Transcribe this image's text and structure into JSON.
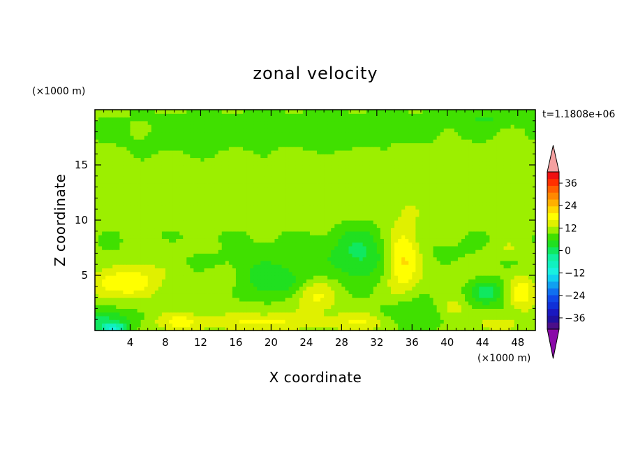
{
  "chart_data": {
    "type": "heatmap",
    "title": "zonal velocity",
    "xlabel": "X coordinate",
    "ylabel": "Z coordinate",
    "x_unit": "(×1000 m)",
    "y_unit": "(×1000 m)",
    "time_label": "t=1.1808e+06",
    "xlim": [
      0,
      50
    ],
    "ylim": [
      0,
      20
    ],
    "x_ticks": [
      4,
      8,
      12,
      16,
      20,
      24,
      28,
      32,
      36,
      40,
      44,
      48
    ],
    "y_ticks": [
      5,
      10,
      15
    ],
    "colorbar": {
      "levels": [
        -42,
        -39,
        -36,
        -33,
        -30,
        -27,
        -24,
        -21,
        -18,
        -15,
        -12,
        -9,
        -6,
        -3,
        0,
        3,
        6,
        9,
        12,
        15,
        18,
        21,
        24,
        27,
        30,
        33,
        36,
        39,
        42
      ],
      "colors": [
        "#4b0e8a",
        "#2010a0",
        "#1a18c0",
        "#1030d8",
        "#1048e8",
        "#1070f0",
        "#10a0f0",
        "#10d0f0",
        "#18f0e0",
        "#10f0c0",
        "#10f0a0",
        "#10e860",
        "#20e020",
        "#40e000",
        "#9cef00",
        "#e0f000",
        "#ffff00",
        "#ffd800",
        "#ffb000",
        "#ff8800",
        "#ff6000",
        "#ff3000",
        "#f01010"
      ],
      "under_color": "#8a0aa8",
      "over_color": "#f5a0a0",
      "tick_labels": [
        "36",
        "24",
        "12",
        "0",
        "−12",
        "−24",
        "−36"
      ],
      "tick_values": [
        36,
        24,
        12,
        0,
        -12,
        -24,
        -36
      ]
    },
    "field": {
      "background_value": 1,
      "features": [
        {
          "x": 25,
          "y": 18.5,
          "sx": 30,
          "sy": 2,
          "value": -2
        },
        {
          "x": 45,
          "y": 19.3,
          "sx": 6,
          "sy": 0.6,
          "value": -3
        },
        {
          "x": 27,
          "y": 17,
          "sx": 4,
          "sy": 0.6,
          "value": -2
        },
        {
          "x": 10,
          "y": 16.5,
          "sx": 10,
          "sy": 1.2,
          "value": -1
        },
        {
          "x": 25,
          "y": 12,
          "sx": 25,
          "sy": 3,
          "value": 1.5
        },
        {
          "x": 25,
          "y": 7,
          "sx": 30,
          "sy": 3,
          "value": -2
        },
        {
          "x": 3,
          "y": 4.3,
          "sx": 4,
          "sy": 1.3,
          "value": 8
        },
        {
          "x": 6,
          "y": 5.5,
          "sx": 3,
          "sy": 1,
          "value": 3
        },
        {
          "x": 14.5,
          "y": 4.5,
          "sx": 3,
          "sy": 1.2,
          "value": 3
        },
        {
          "x": 20,
          "y": 4.5,
          "sx": 4,
          "sy": 1.5,
          "value": -6
        },
        {
          "x": 25,
          "y": 3.2,
          "sx": 2.5,
          "sy": 1.5,
          "value": 6
        },
        {
          "x": 30,
          "y": 7,
          "sx": 3,
          "sy": 2.5,
          "value": -6
        },
        {
          "x": 35,
          "y": 6.5,
          "sx": 2,
          "sy": 3,
          "value": 10
        },
        {
          "x": 1,
          "y": 1,
          "sx": 3,
          "sy": 1,
          "value": -8
        },
        {
          "x": 2,
          "y": 0.2,
          "sx": 1.5,
          "sy": 0.5,
          "value": -14
        },
        {
          "x": 10,
          "y": 0.8,
          "sx": 3,
          "sy": 0.8,
          "value": 6
        },
        {
          "x": 19,
          "y": 0.8,
          "sx": 5,
          "sy": 0.8,
          "value": 6
        },
        {
          "x": 30,
          "y": 0.8,
          "sx": 4,
          "sy": 0.8,
          "value": 5
        },
        {
          "x": 36,
          "y": 1.5,
          "sx": 3,
          "sy": 1.5,
          "value": -5
        },
        {
          "x": 40.5,
          "y": 2,
          "sx": 1.5,
          "sy": 1,
          "value": 4
        },
        {
          "x": 44.5,
          "y": 3.5,
          "sx": 2,
          "sy": 1.2,
          "value": -8
        },
        {
          "x": 48.5,
          "y": 3.5,
          "sx": 1.5,
          "sy": 1.5,
          "value": 8
        },
        {
          "x": 42,
          "y": 5.3,
          "sx": 4,
          "sy": 1.2,
          "value": 2
        },
        {
          "x": 47,
          "y": 7.5,
          "sx": 2,
          "sy": 0.8,
          "value": 3
        },
        {
          "x": 46,
          "y": 0.6,
          "sx": 2,
          "sy": 0.6,
          "value": 5
        },
        {
          "x": 10,
          "y": 7.5,
          "sx": 5,
          "sy": 0.8,
          "value": 1.5
        }
      ]
    }
  }
}
